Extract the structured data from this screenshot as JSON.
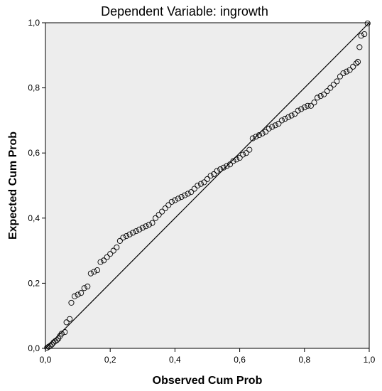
{
  "chart_data": {
    "type": "scatter",
    "title": "Dependent Variable: ingrowth",
    "xlabel": "Observed Cum Prob",
    "ylabel": "Expected Cum Prob",
    "xlim": [
      0,
      1
    ],
    "ylim": [
      0,
      1
    ],
    "xticks": [
      "0,0",
      "0,2",
      "0,4",
      "0,6",
      "0,8",
      "1,0"
    ],
    "yticks": [
      "0,0",
      "0,2",
      "0,4",
      "0,6",
      "0,8",
      "1,0"
    ],
    "grid": false,
    "reference_line": {
      "from": [
        0,
        0
      ],
      "to": [
        1,
        1
      ]
    },
    "plot_background": "#ededed",
    "line_color": "#000000",
    "marker": "open-circle",
    "points": [
      [
        0.005,
        0.002
      ],
      [
        0.01,
        0.005
      ],
      [
        0.015,
        0.008
      ],
      [
        0.02,
        0.012
      ],
      [
        0.025,
        0.018
      ],
      [
        0.03,
        0.022
      ],
      [
        0.035,
        0.025
      ],
      [
        0.04,
        0.03
      ],
      [
        0.045,
        0.038
      ],
      [
        0.05,
        0.045
      ],
      [
        0.06,
        0.05
      ],
      [
        0.065,
        0.08
      ],
      [
        0.075,
        0.09
      ],
      [
        0.08,
        0.14
      ],
      [
        0.09,
        0.16
      ],
      [
        0.1,
        0.165
      ],
      [
        0.11,
        0.17
      ],
      [
        0.12,
        0.185
      ],
      [
        0.13,
        0.19
      ],
      [
        0.14,
        0.23
      ],
      [
        0.15,
        0.235
      ],
      [
        0.16,
        0.24
      ],
      [
        0.17,
        0.265
      ],
      [
        0.18,
        0.27
      ],
      [
        0.19,
        0.28
      ],
      [
        0.2,
        0.29
      ],
      [
        0.21,
        0.3
      ],
      [
        0.22,
        0.31
      ],
      [
        0.23,
        0.33
      ],
      [
        0.24,
        0.34
      ],
      [
        0.25,
        0.345
      ],
      [
        0.26,
        0.35
      ],
      [
        0.27,
        0.355
      ],
      [
        0.28,
        0.36
      ],
      [
        0.29,
        0.365
      ],
      [
        0.3,
        0.37
      ],
      [
        0.31,
        0.375
      ],
      [
        0.32,
        0.38
      ],
      [
        0.33,
        0.385
      ],
      [
        0.34,
        0.4
      ],
      [
        0.35,
        0.41
      ],
      [
        0.36,
        0.42
      ],
      [
        0.37,
        0.43
      ],
      [
        0.38,
        0.44
      ],
      [
        0.39,
        0.45
      ],
      [
        0.4,
        0.455
      ],
      [
        0.41,
        0.46
      ],
      [
        0.42,
        0.465
      ],
      [
        0.43,
        0.47
      ],
      [
        0.44,
        0.475
      ],
      [
        0.45,
        0.48
      ],
      [
        0.46,
        0.49
      ],
      [
        0.47,
        0.5
      ],
      [
        0.48,
        0.505
      ],
      [
        0.49,
        0.51
      ],
      [
        0.5,
        0.52
      ],
      [
        0.51,
        0.53
      ],
      [
        0.52,
        0.535
      ],
      [
        0.53,
        0.545
      ],
      [
        0.54,
        0.55
      ],
      [
        0.55,
        0.555
      ],
      [
        0.56,
        0.56
      ],
      [
        0.57,
        0.565
      ],
      [
        0.58,
        0.575
      ],
      [
        0.59,
        0.58
      ],
      [
        0.6,
        0.585
      ],
      [
        0.61,
        0.595
      ],
      [
        0.62,
        0.6
      ],
      [
        0.63,
        0.61
      ],
      [
        0.64,
        0.645
      ],
      [
        0.65,
        0.65
      ],
      [
        0.66,
        0.655
      ],
      [
        0.67,
        0.66
      ],
      [
        0.68,
        0.665
      ],
      [
        0.69,
        0.675
      ],
      [
        0.7,
        0.68
      ],
      [
        0.71,
        0.685
      ],
      [
        0.72,
        0.69
      ],
      [
        0.73,
        0.7
      ],
      [
        0.74,
        0.705
      ],
      [
        0.75,
        0.71
      ],
      [
        0.76,
        0.715
      ],
      [
        0.77,
        0.72
      ],
      [
        0.78,
        0.73
      ],
      [
        0.79,
        0.735
      ],
      [
        0.8,
        0.74
      ],
      [
        0.81,
        0.745
      ],
      [
        0.82,
        0.745
      ],
      [
        0.83,
        0.755
      ],
      [
        0.84,
        0.77
      ],
      [
        0.85,
        0.775
      ],
      [
        0.86,
        0.78
      ],
      [
        0.87,
        0.79
      ],
      [
        0.88,
        0.8
      ],
      [
        0.89,
        0.81
      ],
      [
        0.9,
        0.82
      ],
      [
        0.91,
        0.835
      ],
      [
        0.92,
        0.845
      ],
      [
        0.93,
        0.85
      ],
      [
        0.94,
        0.855
      ],
      [
        0.95,
        0.865
      ],
      [
        0.96,
        0.875
      ],
      [
        0.965,
        0.88
      ],
      [
        0.97,
        0.925
      ],
      [
        0.975,
        0.96
      ],
      [
        0.985,
        0.965
      ],
      [
        0.995,
        0.998
      ]
    ]
  }
}
